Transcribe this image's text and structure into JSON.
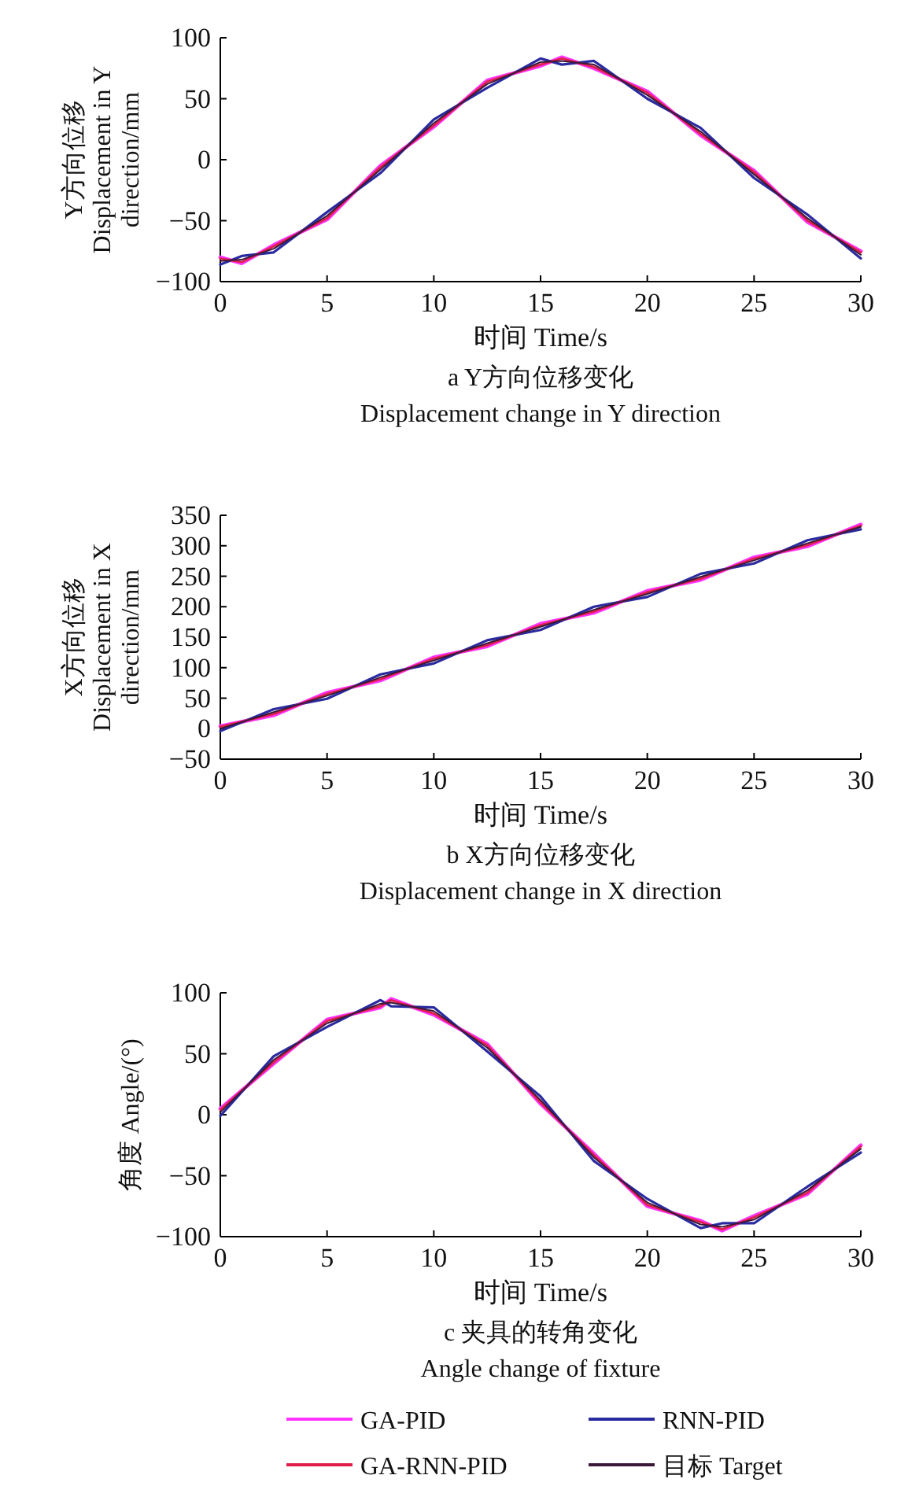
{
  "chart_data": [
    {
      "type": "line",
      "title": "a Y方向位移变化",
      "subtitle": "Displacement change in Y direction",
      "xlabel": "时间 Time/s",
      "ylabel": "Y方向位移\nDisplacement in Y\ndirection/mm",
      "x": [
        0,
        1,
        2.5,
        5,
        7.5,
        10,
        12.5,
        15,
        16,
        17.5,
        20,
        22.5,
        25,
        27.5,
        30
      ],
      "xlim": [
        0,
        30
      ],
      "xticks": [
        0,
        5,
        10,
        15,
        20,
        25,
        30
      ],
      "ylim": [
        -100,
        100
      ],
      "yticks": [
        -100,
        -50,
        0,
        50,
        100
      ],
      "series": [
        {
          "color": "#ff33ff",
          "values": [
            -80,
            -85,
            -70,
            -49,
            -5,
            27,
            65,
            77,
            84,
            75,
            56,
            20,
            -9,
            -51,
            -75
          ]
        },
        {
          "color": "#2a2aa0",
          "values": [
            -86,
            -79,
            -76,
            -43,
            -11,
            33,
            59,
            83,
            78,
            81,
            50,
            26,
            -15,
            -45,
            -81
          ]
        },
        {
          "color": "#e0204a",
          "values": [
            -81,
            -84,
            -71,
            -48,
            -6,
            28,
            64,
            78,
            83,
            76,
            55,
            21,
            -10,
            -50,
            -76
          ]
        },
        {
          "color": "#3a1838",
          "values": [
            -83,
            -82,
            -73,
            -46,
            -8,
            30,
            62,
            80,
            81,
            78,
            53,
            23,
            -12,
            -48,
            -78
          ]
        }
      ]
    },
    {
      "type": "line",
      "title": "b X方向位移变化",
      "subtitle": "Displacement change in X direction",
      "xlabel": "时间 Time/s",
      "ylabel": "X方向位移\nDisplacement in X\ndirection/mm",
      "x": [
        0,
        2.5,
        5,
        7.5,
        10,
        12.5,
        15,
        17.5,
        20,
        22.5,
        25,
        27.5,
        30
      ],
      "xlim": [
        0,
        30
      ],
      "xticks": [
        0,
        5,
        10,
        15,
        20,
        25,
        30
      ],
      "ylim": [
        -50,
        350
      ],
      "yticks": [
        -50,
        0,
        50,
        100,
        150,
        200,
        250,
        300,
        350
      ],
      "series": [
        {
          "color": "#ff33ff",
          "values": [
            4,
            22,
            59,
            79,
            117,
            135,
            172,
            190,
            226,
            244,
            281,
            299,
            335
          ]
        },
        {
          "color": "#2a2aa0",
          "values": [
            -4,
            32,
            49,
            89,
            107,
            145,
            162,
            200,
            216,
            254,
            271,
            309,
            327
          ]
        },
        {
          "color": "#e0204a",
          "values": [
            3,
            24,
            57,
            81,
            115,
            137,
            170,
            192,
            224,
            246,
            279,
            301,
            333
          ]
        },
        {
          "color": "#3a1838",
          "values": [
            0,
            27,
            54,
            84,
            112,
            140,
            167,
            195,
            221,
            249,
            276,
            304,
            331
          ]
        }
      ]
    },
    {
      "type": "line",
      "title": "c 夹具的转角变化",
      "subtitle": "Angle change of fixture",
      "xlabel": "时间 Time/s",
      "ylabel": "角度 Angle/(°)",
      "x": [
        0,
        2.5,
        5,
        7.5,
        8,
        10,
        12.5,
        15,
        17.5,
        20,
        22.5,
        23.5,
        25,
        27.5,
        30
      ],
      "xlim": [
        0,
        30
      ],
      "xticks": [
        0,
        5,
        10,
        15,
        20,
        25,
        30
      ],
      "ylim": [
        -100,
        100
      ],
      "yticks": [
        -100,
        -50,
        0,
        50,
        100
      ],
      "legend": "bottom",
      "series": [
        {
          "name": "GA-PID",
          "color": "#ff33ff",
          "values": [
            5,
            42,
            78,
            88,
            95,
            82,
            58,
            9,
            -32,
            -75,
            -87,
            -95,
            -83,
            -65,
            -25
          ]
        },
        {
          "name": "RNN-PID",
          "color": "#2a2aa0",
          "values": [
            -1,
            48,
            72,
            94,
            89,
            88,
            52,
            15,
            -38,
            -69,
            -93,
            -89,
            -89,
            -59,
            -31
          ]
        },
        {
          "name": "GA-RNN-PID",
          "color": "#e0204a",
          "values": [
            4,
            43,
            77,
            89,
            94,
            83,
            57,
            10,
            -33,
            -74,
            -88,
            -94,
            -84,
            -64,
            -26
          ]
        },
        {
          "name": "目标 Target",
          "color": "#3a1838",
          "values": [
            2,
            45,
            75,
            91,
            92,
            85,
            55,
            12,
            -35,
            -72,
            -90,
            -92,
            -86,
            -62,
            -28
          ]
        }
      ]
    }
  ]
}
